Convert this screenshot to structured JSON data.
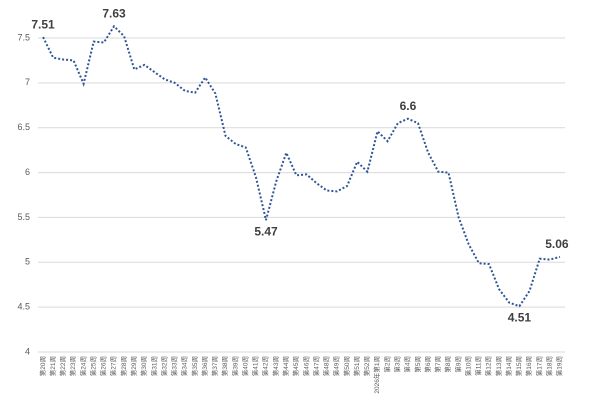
{
  "chart_data": {
    "type": "line",
    "categories": [
      "第20周",
      "第21周",
      "第22周",
      "第23周",
      "第24周",
      "第25周",
      "第26周",
      "第27周",
      "第28周",
      "第29周",
      "第30周",
      "第31周",
      "第32周",
      "第33周",
      "第34周",
      "第35周",
      "第36周",
      "第37周",
      "第38周",
      "第39周",
      "第40周",
      "第41周",
      "第42周",
      "第43周",
      "第44周",
      "第45周",
      "第46周",
      "第47周",
      "第48周",
      "第49周",
      "第50周",
      "第51周",
      "第52周",
      "2026年第1周",
      "第2周",
      "第3周",
      "第4周",
      "第5周",
      "第6周",
      "第7周",
      "第8周",
      "第9周",
      "第10周",
      "第11周",
      "第12周",
      "第13周",
      "第14周",
      "第15周",
      "第16周",
      "第17周",
      "第18周",
      "第19周"
    ],
    "values": [
      7.51,
      7.28,
      7.26,
      7.25,
      6.99,
      7.46,
      7.45,
      7.63,
      7.52,
      7.15,
      7.2,
      7.12,
      7.04,
      7.0,
      6.91,
      6.89,
      7.06,
      6.88,
      6.41,
      6.32,
      6.28,
      5.95,
      5.47,
      5.9,
      6.22,
      5.97,
      5.98,
      5.88,
      5.8,
      5.79,
      5.85,
      6.12,
      6.01,
      6.46,
      6.35,
      6.55,
      6.6,
      6.55,
      6.22,
      6.01,
      6.0,
      5.5,
      5.2,
      4.99,
      4.98,
      4.7,
      4.55,
      4.51,
      4.68,
      5.04,
      5.03,
      5.06
    ],
    "value_labels": [
      "7.51",
      null,
      null,
      null,
      null,
      null,
      null,
      "7.63",
      null,
      null,
      null,
      null,
      null,
      null,
      null,
      null,
      null,
      null,
      null,
      null,
      null,
      null,
      "5.47",
      null,
      null,
      null,
      null,
      null,
      null,
      null,
      null,
      null,
      null,
      null,
      null,
      null,
      "6.6",
      null,
      null,
      null,
      null,
      null,
      null,
      null,
      null,
      null,
      null,
      "4.51",
      null,
      null,
      null,
      "5.06"
    ],
    "color": "#2f5597",
    "ylim": [
      4,
      7.5
    ],
    "yticks": [
      4,
      4.5,
      5,
      5.5,
      6,
      6.5,
      7,
      7.5
    ],
    "grid": true
  }
}
